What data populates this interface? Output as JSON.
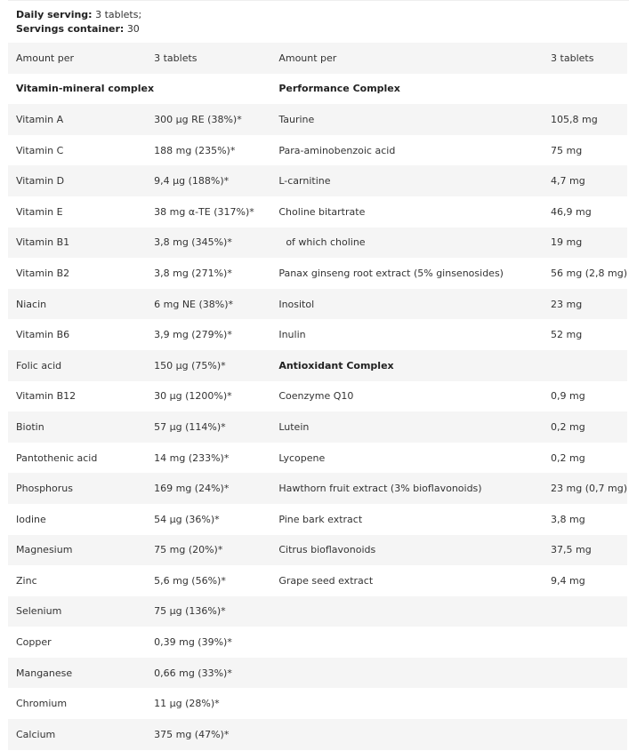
{
  "serving": {
    "daily_label": "Daily serving:",
    "daily_value": "3 tablets;",
    "container_label": "Servings container:",
    "container_value": "30"
  },
  "table": {
    "header": [
      "Amount per",
      "3 tablets",
      "Amount per",
      "3 tablets"
    ],
    "rows": [
      [
        {
          "t": "Vitamin-mineral complex",
          "b": true
        },
        {
          "t": ""
        },
        {
          "t": "Performance Complex",
          "b": true
        },
        {
          "t": ""
        }
      ],
      [
        {
          "t": "Vitamin A"
        },
        {
          "t": "300 µg RE (38%)*"
        },
        {
          "t": "Taurine"
        },
        {
          "t": "105,8 mg"
        }
      ],
      [
        {
          "t": "Vitamin C"
        },
        {
          "t": "188 mg (235%)*"
        },
        {
          "t": "Para-aminobenzoic acid"
        },
        {
          "t": "75 mg"
        }
      ],
      [
        {
          "t": "Vitamin D"
        },
        {
          "t": "9,4 µg (188%)*"
        },
        {
          "t": "L-carnitine"
        },
        {
          "t": "4,7 mg"
        }
      ],
      [
        {
          "t": "Vitamin E"
        },
        {
          "t": "38 mg α-TE  (317%)*"
        },
        {
          "t": "Choline bitartrate"
        },
        {
          "t": "46,9 mg"
        }
      ],
      [
        {
          "t": "Vitamin B1"
        },
        {
          "t": "3,8 mg (345%)*"
        },
        {
          "t": "  of which choline"
        },
        {
          "t": "19 mg"
        }
      ],
      [
        {
          "t": "Vitamin B2"
        },
        {
          "t": "3,8 mg (271%)*"
        },
        {
          "t": "Panax ginseng root extract (5% ginsenosides)"
        },
        {
          "t": "56 mg (2,8 mg)"
        }
      ],
      [
        {
          "t": "Niacin"
        },
        {
          "t": "6 mg NE (38%)*"
        },
        {
          "t": "Inositol"
        },
        {
          "t": "23 mg"
        }
      ],
      [
        {
          "t": "Vitamin B6"
        },
        {
          "t": "3,9 mg (279%)*"
        },
        {
          "t": "Inulin"
        },
        {
          "t": "52 mg"
        }
      ],
      [
        {
          "t": "Folic acid"
        },
        {
          "t": "150 µg (75%)*"
        },
        {
          "t": "Antioxidant Complex",
          "b": true
        },
        {
          "t": ""
        }
      ],
      [
        {
          "t": "Vitamin B12"
        },
        {
          "t": "30 µg (1200%)*"
        },
        {
          "t": "Coenzyme Q10"
        },
        {
          "t": "0,9 mg"
        }
      ],
      [
        {
          "t": "Biotin"
        },
        {
          "t": "57 µg (114%)*"
        },
        {
          "t": "Lutein"
        },
        {
          "t": "0,2 mg"
        }
      ],
      [
        {
          "t": "Pantothenic acid"
        },
        {
          "t": "14 mg (233%)*"
        },
        {
          "t": "Lycopene"
        },
        {
          "t": "0,2 mg"
        }
      ],
      [
        {
          "t": "Phosphorus"
        },
        {
          "t": "169 mg (24%)*"
        },
        {
          "t": "Hawthorn fruit extract (3% bioflavonoids)"
        },
        {
          "t": "23 mg (0,7 mg)"
        }
      ],
      [
        {
          "t": "Iodine"
        },
        {
          "t": "54 µg (36%)*"
        },
        {
          "t": "Pine bark extract"
        },
        {
          "t": "3,8 mg"
        }
      ],
      [
        {
          "t": "Magnesium"
        },
        {
          "t": "75 mg (20%)*"
        },
        {
          "t": "Citrus bioflavonoids"
        },
        {
          "t": "37,5 mg"
        }
      ],
      [
        {
          "t": "Zinc"
        },
        {
          "t": "5,6 mg (56%)*"
        },
        {
          "t": "Grape seed extract"
        },
        {
          "t": "9,4 mg"
        }
      ],
      [
        {
          "t": "Selenium"
        },
        {
          "t": "75 µg (136%)*"
        },
        {
          "t": ""
        },
        {
          "t": ""
        }
      ],
      [
        {
          "t": "Copper"
        },
        {
          "t": "0,39 mg (39%)*"
        },
        {
          "t": ""
        },
        {
          "t": ""
        }
      ],
      [
        {
          "t": "Manganese"
        },
        {
          "t": "0,66 mg (33%)*"
        },
        {
          "t": ""
        },
        {
          "t": ""
        }
      ],
      [
        {
          "t": "Chromium"
        },
        {
          "t": "11 µg (28%)*"
        },
        {
          "t": ""
        },
        {
          "t": ""
        }
      ],
      [
        {
          "t": "Calcium"
        },
        {
          "t": "375 mg (47%)*"
        },
        {
          "t": ""
        },
        {
          "t": ""
        }
      ]
    ]
  }
}
